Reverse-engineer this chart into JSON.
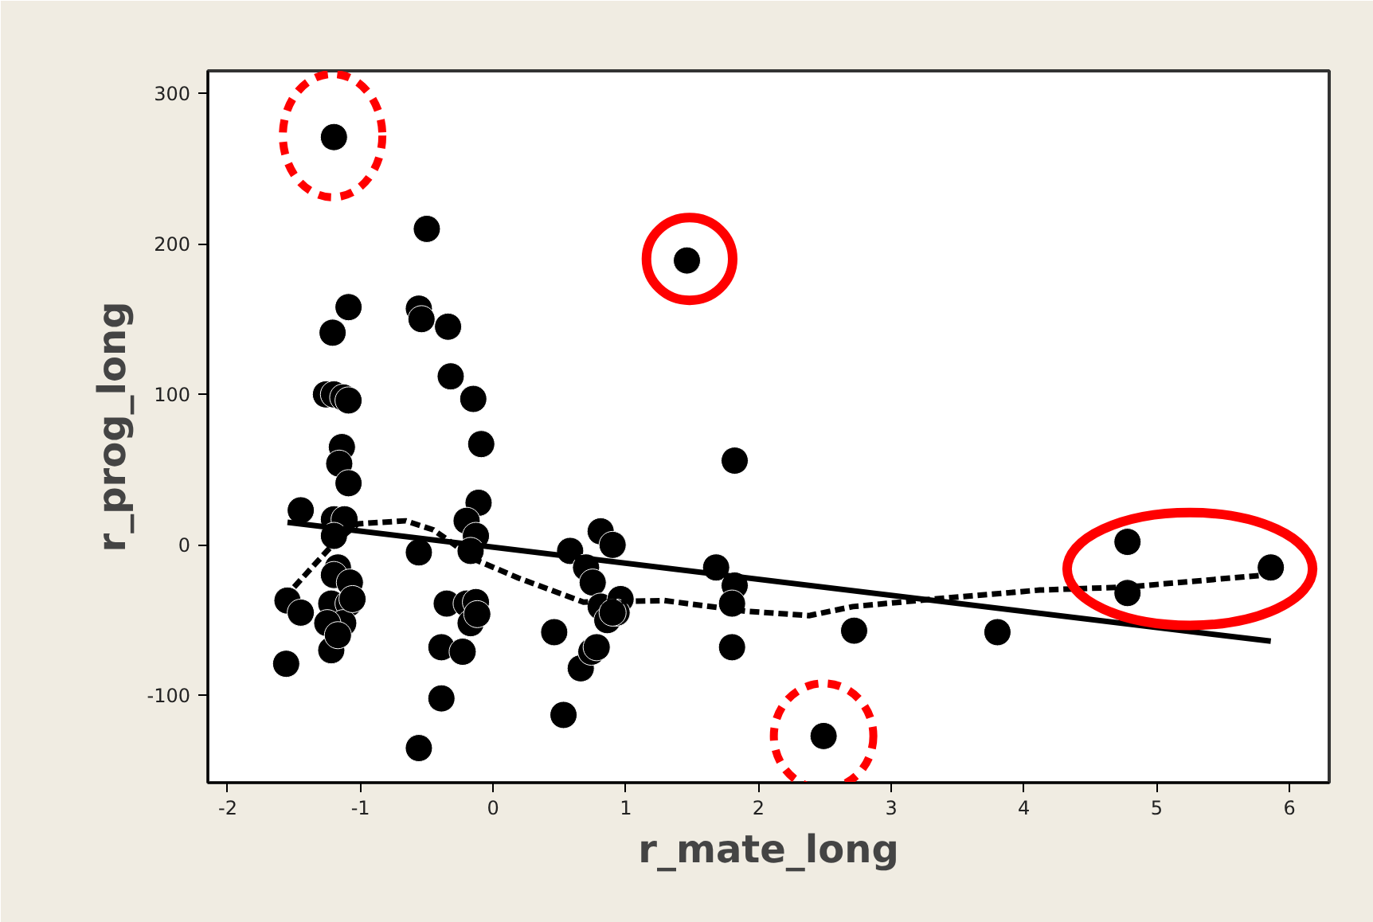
{
  "chart_data": {
    "type": "scatter",
    "xlabel": "r_mate_long",
    "ylabel": "r_prog_long",
    "xlim": [
      -2.15,
      6.3
    ],
    "ylim": [
      -158,
      315
    ],
    "xticks": [
      -2,
      -1,
      0,
      1,
      2,
      3,
      4,
      5,
      6
    ],
    "yticks": [
      -100,
      0,
      100,
      200,
      300
    ],
    "grid": false,
    "series": [
      {
        "color": "#000000",
        "marker": "circle",
        "x": [
          -1.56,
          -1.55,
          -1.45,
          -1.45,
          -1.2,
          -1.26,
          -1.2,
          -1.13,
          -1.09,
          -1.21,
          -1.09,
          -1.14,
          -1.16,
          -1.09,
          -1.2,
          -1.12,
          -1.2,
          -1.17,
          -1.2,
          -1.08,
          -1.22,
          -1.09,
          -1.13,
          -1.25,
          -1.22,
          -1.17,
          -1.06,
          -0.56,
          -0.56,
          -0.54,
          -0.5,
          -0.34,
          -0.32,
          -0.15,
          -0.09,
          -0.11,
          -0.2,
          -0.13,
          -0.17,
          -0.56,
          -0.35,
          -0.2,
          -0.13,
          -0.17,
          -0.12,
          -0.39,
          -0.23,
          -0.39,
          0.46,
          0.53,
          0.58,
          0.7,
          0.75,
          0.81,
          0.86,
          0.66,
          0.74,
          0.78,
          0.81,
          0.9,
          0.96,
          0.93,
          0.9,
          1.68,
          1.82,
          1.8,
          1.8,
          1.46,
          1.82,
          2.49,
          2.72,
          3.8,
          4.78,
          4.78,
          5.86
        ],
        "values": [
          -79,
          -37,
          -45,
          23,
          271,
          100,
          100,
          98,
          96,
          141,
          158,
          65,
          54,
          41,
          17,
          17,
          6,
          -15,
          -20,
          -25,
          -39,
          -39,
          -52,
          -52,
          -70,
          -60,
          -36,
          -135,
          157,
          150,
          210,
          145,
          112,
          97,
          67,
          28,
          16,
          6,
          -4,
          -5,
          -39,
          -39,
          -38,
          -52,
          -46,
          -68,
          -71,
          -102,
          -58,
          -113,
          -4,
          -15,
          -25,
          -41,
          -50,
          -82,
          -71,
          -68,
          9,
          0,
          -36,
          -45,
          -45,
          -15,
          -27,
          -39,
          -68,
          189,
          56,
          -127,
          -57,
          -58,
          2,
          -32,
          -15
        ]
      },
      {
        "type": "line",
        "color": "#000000",
        "marker": "none",
        "line_style": "solid",
        "x": [
          -1.55,
          5.86
        ],
        "values": [
          15,
          -64
        ]
      },
      {
        "type": "line",
        "color": "#000000",
        "marker": "none",
        "line_style": "dashed",
        "x": [
          -1.5,
          -1.2,
          -1.02,
          -0.66,
          -0.45,
          -0.13,
          0.19,
          0.68,
          1.29,
          1.9,
          2.38,
          2.71,
          3.32,
          4.12,
          4.78,
          5.82
        ],
        "values": [
          -28,
          1,
          14,
          16,
          10,
          -10,
          -22,
          -38,
          -37,
          -44,
          -47,
          -41,
          -36,
          -30,
          -28,
          -20
        ]
      }
    ]
  }
}
